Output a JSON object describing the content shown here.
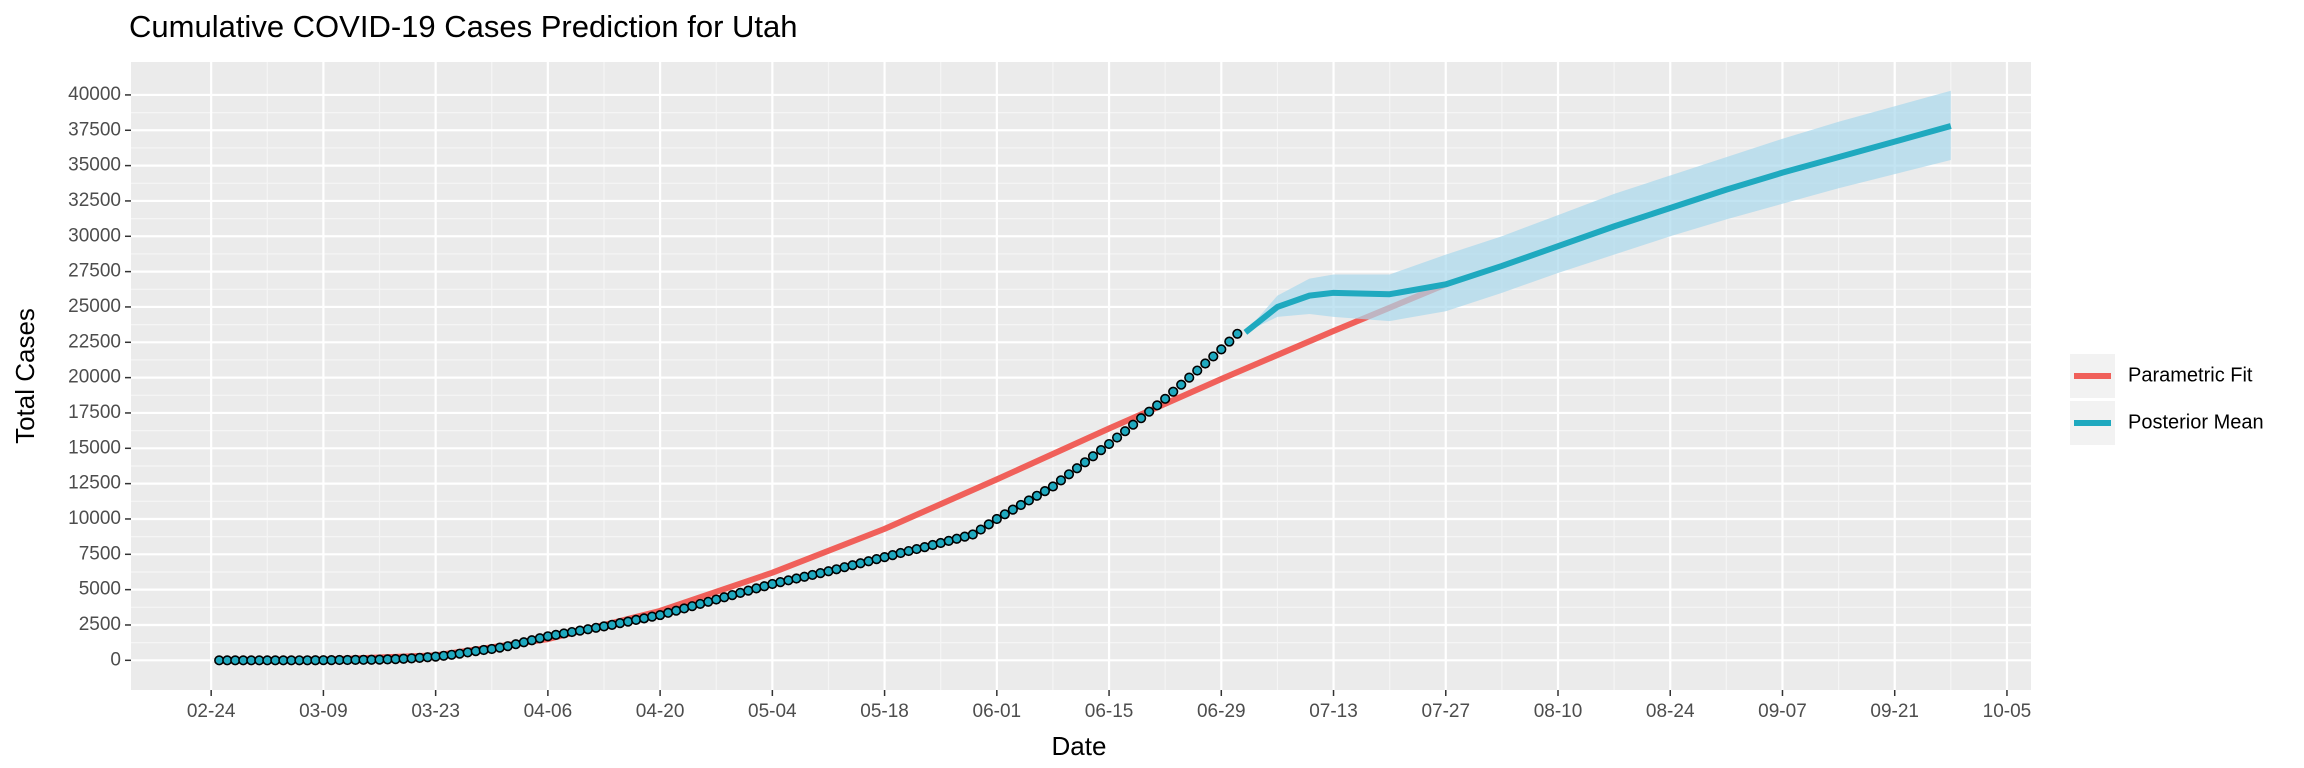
{
  "chart_data": {
    "type": "line",
    "title": "Cumulative COVID-19 Cases Prediction for Utah",
    "x_label": "Date",
    "y_label": "Total Cases",
    "xlim": [
      "02-14",
      "10-08"
    ],
    "xticks": [
      "02-24",
      "03-09",
      "03-23",
      "04-06",
      "04-20",
      "05-04",
      "05-18",
      "06-01",
      "06-15",
      "06-29",
      "07-13",
      "07-27",
      "08-10",
      "08-24",
      "09-07",
      "09-21",
      "10-05"
    ],
    "ylim": [
      -2100,
      42330
    ],
    "yticks": [
      0,
      2500,
      5000,
      7500,
      10000,
      12500,
      15000,
      17500,
      20000,
      22500,
      25000,
      27500,
      30000,
      32500,
      35000,
      37500,
      40000
    ],
    "grid": true,
    "legend": "right",
    "series": [
      {
        "name": "Parametric Fit",
        "color": "#F0605A",
        "x": [
          "02-25",
          "03-09",
          "03-23",
          "04-06",
          "04-20",
          "05-04",
          "05-18",
          "06-01",
          "06-15",
          "06-29",
          "07-13",
          "07-27"
        ],
        "values": [
          0,
          50,
          350,
          1500,
          3500,
          6200,
          9300,
          12800,
          16400,
          19900,
          23300,
          26600
        ]
      },
      {
        "name": "Posterior Mean",
        "color": "#1FA9BF",
        "band_color": "#A9D9EC",
        "x": [
          "07-02",
          "07-06",
          "07-10",
          "07-13",
          "07-20",
          "07-27",
          "08-03",
          "08-10",
          "08-17",
          "08-24",
          "08-31",
          "09-07",
          "09-14",
          "09-21",
          "09-28"
        ],
        "values": [
          23200,
          25000,
          25800,
          26000,
          25900,
          26600,
          27900,
          29300,
          30700,
          32000,
          33300,
          34500,
          35600,
          36700,
          37800
        ],
        "lower": [
          23200,
          24300,
          24500,
          24300,
          24000,
          24700,
          26000,
          27400,
          28700,
          30000,
          31200,
          32300,
          33400,
          34400,
          35400
        ],
        "upper": [
          23200,
          25800,
          27000,
          27300,
          27300,
          28700,
          30000,
          31500,
          33000,
          34300,
          35600,
          36900,
          38100,
          39200,
          40300
        ]
      }
    ],
    "points": {
      "color": "#1FA9BF",
      "edge_color": "#000000",
      "x": [
        "02-25",
        "02-26",
        "02-27",
        "02-28",
        "02-29",
        "03-01",
        "03-02",
        "03-03",
        "03-04",
        "03-05",
        "03-06",
        "03-07",
        "03-08",
        "03-09",
        "03-10",
        "03-11",
        "03-12",
        "03-13",
        "03-14",
        "03-15",
        "03-16",
        "03-17",
        "03-18",
        "03-19",
        "03-20",
        "03-21",
        "03-22",
        "03-23",
        "03-24",
        "03-25",
        "03-26",
        "03-27",
        "03-28",
        "03-29",
        "03-30",
        "03-31",
        "04-01",
        "04-02",
        "04-03",
        "04-04",
        "04-05",
        "04-06",
        "04-07",
        "04-08",
        "04-09",
        "04-10",
        "04-11",
        "04-12",
        "04-13",
        "04-14",
        "04-15",
        "04-16",
        "04-17",
        "04-18",
        "04-19",
        "04-20",
        "04-21",
        "04-22",
        "04-23",
        "04-24",
        "04-25",
        "04-26",
        "04-27",
        "04-28",
        "04-29",
        "04-30",
        "05-01",
        "05-02",
        "05-03",
        "05-04",
        "05-05",
        "05-06",
        "05-07",
        "05-08",
        "05-09",
        "05-10",
        "05-11",
        "05-12",
        "05-13",
        "05-14",
        "05-15",
        "05-16",
        "05-17",
        "05-18",
        "05-19",
        "05-20",
        "05-21",
        "05-22",
        "05-23",
        "05-24",
        "05-25",
        "05-26",
        "05-27",
        "05-28",
        "05-29",
        "05-30",
        "05-31",
        "06-01",
        "06-02",
        "06-03",
        "06-04",
        "06-05",
        "06-06",
        "06-07",
        "06-08",
        "06-09",
        "06-10",
        "06-11",
        "06-12",
        "06-13",
        "06-14",
        "06-15",
        "06-16",
        "06-17",
        "06-18",
        "06-19",
        "06-20",
        "06-21",
        "06-22",
        "06-23",
        "06-24",
        "06-25",
        "06-26",
        "06-27",
        "06-28",
        "06-29",
        "06-30",
        "07-01"
      ],
      "values": [
        0,
        0,
        0,
        0,
        0,
        0,
        0,
        0,
        0,
        0,
        1,
        2,
        5,
        10,
        15,
        20,
        25,
        30,
        35,
        40,
        50,
        65,
        85,
        110,
        140,
        175,
        215,
        260,
        320,
        390,
        470,
        560,
        650,
        730,
        800,
        900,
        1000,
        1140,
        1280,
        1420,
        1560,
        1700,
        1800,
        1900,
        2000,
        2100,
        2200,
        2300,
        2400,
        2510,
        2630,
        2740,
        2860,
        2970,
        3090,
        3200,
        3360,
        3510,
        3670,
        3830,
        3990,
        4140,
        4300,
        4460,
        4610,
        4770,
        4930,
        5090,
        5240,
        5400,
        5530,
        5660,
        5790,
        5910,
        6040,
        6170,
        6300,
        6440,
        6590,
        6730,
        6870,
        7010,
        7160,
        7300,
        7440,
        7590,
        7730,
        7870,
        8010,
        8160,
        8300,
        8450,
        8600,
        8750,
        8900,
        9250,
        9620,
        10000,
        10330,
        10660,
        10990,
        11310,
        11640,
        11970,
        12300,
        12730,
        13160,
        13590,
        14010,
        14440,
        14870,
        15300,
        15760,
        16210,
        16670,
        17130,
        17590,
        18040,
        18500,
        19000,
        19500,
        20000,
        20500,
        21000,
        21500,
        22000,
        22550,
        23100
      ]
    }
  }
}
